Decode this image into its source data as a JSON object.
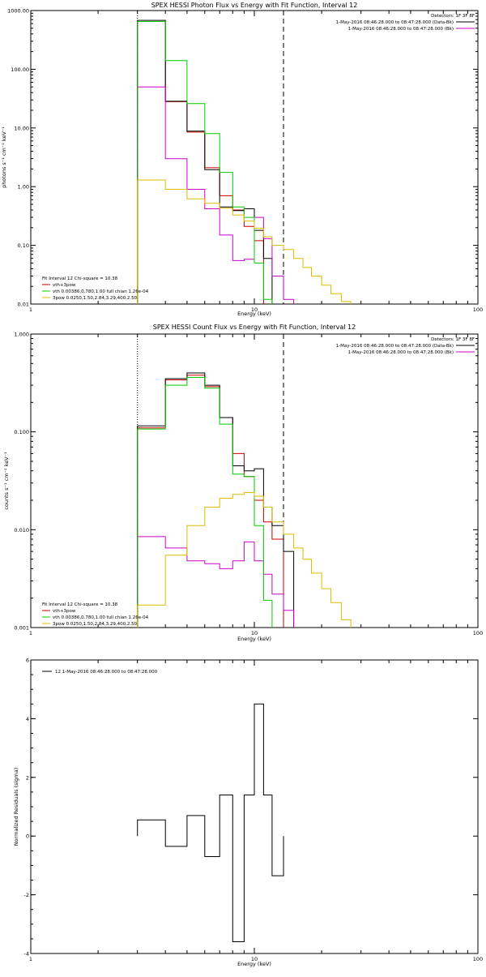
{
  "panels": [
    {
      "id": "photon",
      "title": "SPEX HESSI Photon Flux vs Energy with Fit Function, Interval 12",
      "ylabel": "photons s⁻¹ cm⁻² keV⁻¹",
      "xlabel": "Energy (keV)",
      "detectors": "Detectors: 1F 3F 8F",
      "legend_right": [
        {
          "text": "1-May-2016 08:46:28.000 to 08:47:28.000 (Data-Bk)",
          "color": "#000000"
        },
        {
          "text": "1-May-2016 08:46:28.000 to 08:47:28.000 (Bk)",
          "color": "#cc00cc"
        }
      ],
      "legend_left": [
        {
          "text": "Fit Interval 12    Chi-square = 10.38",
          "color": null
        },
        {
          "text": "vth+3pow",
          "color": "#cc0000"
        },
        {
          "text": "vth 0.00386,0.780,1.00  full chian 1.26e-04",
          "color": "#00cc00"
        },
        {
          "text": "3pow 0.0250,1.50,2.84,3.29,400,2.50",
          "color": "#ddbb00"
        }
      ]
    },
    {
      "id": "count",
      "title": "SPEX HESSI Count Flux vs Energy with Fit Function, Interval 12",
      "ylabel": "counts s⁻¹ cm⁻² keV⁻¹",
      "xlabel": "Energy (keV)",
      "detectors": "Detectors: 1F 3F 8F",
      "legend_right": [
        {
          "text": "1-May-2016 08:46:28.000 to 08:47:28.000 (Data-Bk)",
          "color": "#000000"
        },
        {
          "text": "1-May-2016 08:46:28.000 to 08:47:28.000 (Bk)",
          "color": "#cc00cc"
        }
      ],
      "legend_left": [
        {
          "text": "Fit Interval 12    Chi-square = 10.38",
          "color": null
        },
        {
          "text": "vth+3pow",
          "color": "#cc0000"
        },
        {
          "text": "vth 0.00386,0.780,1.00  full chian 1.26e-04",
          "color": "#00cc00"
        },
        {
          "text": "3pow 0.0250,1.50,2.84,3.29,400,2.50",
          "color": "#ddbb00"
        }
      ]
    },
    {
      "id": "resid",
      "title": "",
      "ylabel": "Normalized Residuals (sigma)",
      "xlabel": "Energy (keV)",
      "legend_text": "12  1-May-2016 08:46:28.000 to 08:47:28.000"
    }
  ],
  "chart_data": [
    {
      "type": "line",
      "title": "SPEX HESSI Photon Flux vs Energy with Fit Function, Interval 12",
      "xlabel": "Energy (keV)",
      "ylabel": "photons s⁻¹ cm⁻² keV⁻¹",
      "xscale": "log",
      "yscale": "log",
      "xlim": [
        1,
        100
      ],
      "ylim": [
        0.01,
        1000
      ],
      "xticks": [
        "1",
        "10",
        "100"
      ],
      "yticks": [
        "0.01",
        "0.10",
        "1.00",
        "10.00",
        "100.00",
        "1000.00"
      ],
      "vlines": [
        {
          "x": 3,
          "style": "dotted"
        },
        {
          "x": 13.5,
          "style": "dashed"
        }
      ],
      "edges": [
        3,
        4,
        5,
        6,
        7,
        8,
        9,
        10,
        11,
        12,
        13.5,
        15,
        16.5,
        18,
        20,
        22,
        24.5,
        27
      ],
      "series": [
        {
          "name": "vth+3pow",
          "color": "#cc0000",
          "values": [
            650,
            28,
            8.5,
            2.1,
            0.7,
            0.4,
            0.21,
            0.12,
            null,
            null,
            null,
            null,
            null,
            null,
            null,
            null,
            null
          ]
        },
        {
          "name": "",
          "color": "#000000",
          "values": [
            680,
            28.5,
            8.8,
            1.95,
            0.45,
            0.39,
            0.42,
            0.18,
            0.06,
            null,
            null,
            null,
            null,
            null,
            null,
            null,
            null
          ]
        },
        {
          "name": "",
          "color": "#cc00cc",
          "values": [
            50,
            3.0,
            0.9,
            0.42,
            0.15,
            0.055,
            0.058,
            0.3,
            0.13,
            0.03,
            0.012,
            null,
            null,
            null,
            null,
            null,
            null
          ]
        },
        {
          "name": "vth",
          "color": "#00cc00",
          "values": [
            650,
            140,
            26,
            8,
            1.75,
            0.45,
            0.3,
            0.05,
            0.012,
            null,
            null,
            null,
            null,
            null,
            null,
            null,
            null
          ]
        },
        {
          "name": "3pow",
          "color": "#ddbb00",
          "values": [
            1.3,
            0.9,
            0.62,
            0.52,
            0.43,
            0.33,
            0.26,
            0.195,
            0.14,
            0.1,
            0.085,
            0.06,
            0.042,
            0.03,
            0.021,
            0.015,
            0.011
          ]
        }
      ]
    },
    {
      "type": "line",
      "title": "SPEX HESSI Count Flux vs Energy with Fit Function, Interval 12",
      "xlabel": "Energy (keV)",
      "ylabel": "counts s⁻¹ cm⁻² keV⁻¹",
      "xscale": "log",
      "yscale": "log",
      "xlim": [
        1,
        100
      ],
      "ylim": [
        0.001,
        1
      ],
      "xticks": [
        "1",
        "10",
        "100"
      ],
      "yticks": [
        "0.001",
        "0.010",
        "0.100",
        "1.000"
      ],
      "vlines": [
        {
          "x": 3,
          "style": "dotted"
        },
        {
          "x": 13.5,
          "style": "dashed"
        }
      ],
      "edges": [
        3,
        4,
        5,
        6,
        7,
        8,
        9,
        10,
        11,
        12,
        13.5,
        15,
        16.5,
        18,
        20,
        22,
        24.5,
        27
      ],
      "series": [
        {
          "name": "vth+3pow",
          "color": "#cc0000",
          "values": [
            0.11,
            0.34,
            0.38,
            0.29,
            0.14,
            0.06,
            0.035,
            0.02,
            0.012,
            0.008,
            null,
            null,
            null,
            null,
            null,
            null,
            null
          ]
        },
        {
          "name": "",
          "color": "#000000",
          "values": [
            0.115,
            0.35,
            0.4,
            0.3,
            0.14,
            0.045,
            0.04,
            0.042,
            0.017,
            0.011,
            0.006,
            null,
            null,
            null,
            null,
            null,
            null
          ]
        },
        {
          "name": "",
          "color": "#cc00cc",
          "values": [
            0.0085,
            0.0065,
            0.0048,
            0.0045,
            0.004,
            0.0048,
            0.0075,
            0.0048,
            0.0035,
            0.0022,
            0.0015,
            null,
            null,
            null,
            null,
            null,
            null
          ]
        },
        {
          "name": "vth",
          "color": "#00cc00",
          "values": [
            0.107,
            0.3,
            0.36,
            0.28,
            0.12,
            0.037,
            0.035,
            0.011,
            0.0019,
            null,
            null,
            null,
            null,
            null,
            null,
            null,
            null
          ]
        },
        {
          "name": "3pow",
          "color": "#ddbb00",
          "values": [
            0.0017,
            0.0055,
            0.011,
            0.017,
            0.021,
            0.023,
            0.024,
            0.022,
            0.017,
            0.012,
            0.009,
            0.0065,
            0.005,
            0.0036,
            0.0025,
            0.0018,
            0.0012
          ]
        }
      ]
    },
    {
      "type": "line",
      "title": "",
      "xlabel": "Energy (keV)",
      "ylabel": "Normalized Residuals (sigma)",
      "xscale": "log",
      "yscale": "linear",
      "xlim": [
        1,
        100
      ],
      "ylim": [
        -4,
        6
      ],
      "xticks": [
        "1",
        "10",
        "100"
      ],
      "yticks": [
        "-4",
        "-2",
        "0",
        "2",
        "4",
        "6"
      ],
      "edges": [
        3,
        4,
        5,
        6,
        7,
        8,
        9,
        10,
        11,
        12,
        13.5
      ],
      "series": [
        {
          "name": "12  1-May-2016 08:46:28.000 to 08:47:28.000",
          "color": "#000000",
          "values": [
            0.55,
            -0.35,
            0.7,
            -0.7,
            1.4,
            -3.6,
            1.4,
            4.5,
            1.4,
            -1.35
          ]
        }
      ]
    }
  ]
}
